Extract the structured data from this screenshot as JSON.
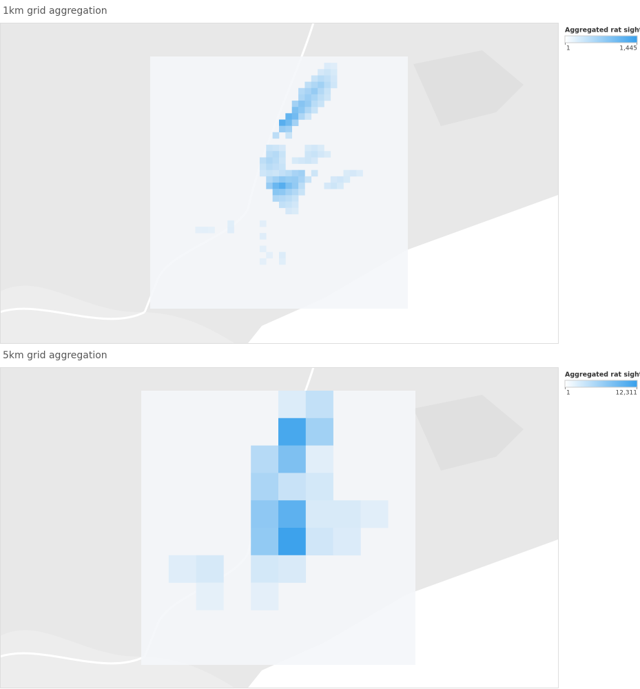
{
  "panels": [
    {
      "title": "1km grid aggregation",
      "legend": {
        "title": "Aggregated rat sightin..",
        "min": 1,
        "max": {
          "value": 1445,
          "label": "1,445"
        }
      },
      "grid": {
        "cols": 40,
        "rows": 40
      },
      "cells": [
        [
          27,
          1,
          150
        ],
        [
          28,
          1,
          120
        ],
        [
          26,
          2,
          200
        ],
        [
          27,
          2,
          260
        ],
        [
          28,
          2,
          180
        ],
        [
          25,
          3,
          300
        ],
        [
          26,
          3,
          420
        ],
        [
          27,
          3,
          350
        ],
        [
          28,
          3,
          220
        ],
        [
          24,
          4,
          380
        ],
        [
          25,
          4,
          500
        ],
        [
          26,
          4,
          610
        ],
        [
          27,
          4,
          420
        ],
        [
          28,
          4,
          250
        ],
        [
          23,
          5,
          450
        ],
        [
          24,
          5,
          560
        ],
        [
          25,
          5,
          700
        ],
        [
          26,
          5,
          480
        ],
        [
          27,
          5,
          300
        ],
        [
          23,
          6,
          520
        ],
        [
          24,
          6,
          650
        ],
        [
          25,
          6,
          540
        ],
        [
          26,
          6,
          380
        ],
        [
          27,
          6,
          260
        ],
        [
          22,
          7,
          600
        ],
        [
          23,
          7,
          820
        ],
        [
          24,
          7,
          700
        ],
        [
          25,
          7,
          420
        ],
        [
          26,
          7,
          300
        ],
        [
          22,
          8,
          900
        ],
        [
          23,
          8,
          760
        ],
        [
          24,
          8,
          500
        ],
        [
          25,
          8,
          300
        ],
        [
          21,
          9,
          1100
        ],
        [
          22,
          9,
          980
        ],
        [
          23,
          9,
          520
        ],
        [
          24,
          9,
          260
        ],
        [
          20,
          10,
          1200
        ],
        [
          21,
          10,
          1000
        ],
        [
          22,
          10,
          600
        ],
        [
          20,
          11,
          700
        ],
        [
          21,
          11,
          620
        ],
        [
          19,
          12,
          400
        ],
        [
          21,
          12,
          300
        ],
        [
          18,
          14,
          300
        ],
        [
          19,
          14,
          260
        ],
        [
          20,
          14,
          200
        ],
        [
          24,
          14,
          180
        ],
        [
          25,
          14,
          220
        ],
        [
          26,
          14,
          160
        ],
        [
          18,
          15,
          400
        ],
        [
          19,
          15,
          450
        ],
        [
          20,
          15,
          300
        ],
        [
          24,
          15,
          260
        ],
        [
          25,
          15,
          300
        ],
        [
          26,
          15,
          220
        ],
        [
          27,
          15,
          160
        ],
        [
          17,
          16,
          380
        ],
        [
          18,
          16,
          500
        ],
        [
          19,
          16,
          420
        ],
        [
          20,
          16,
          260
        ],
        [
          22,
          16,
          180
        ],
        [
          23,
          16,
          220
        ],
        [
          24,
          16,
          260
        ],
        [
          25,
          16,
          200
        ],
        [
          17,
          17,
          300
        ],
        [
          18,
          17,
          420
        ],
        [
          19,
          17,
          360
        ],
        [
          20,
          17,
          300
        ],
        [
          17,
          18,
          250
        ],
        [
          18,
          18,
          300
        ],
        [
          19,
          18,
          260
        ],
        [
          20,
          18,
          340
        ],
        [
          21,
          18,
          420
        ],
        [
          22,
          18,
          560
        ],
        [
          23,
          18,
          620
        ],
        [
          25,
          18,
          260
        ],
        [
          30,
          18,
          160
        ],
        [
          31,
          18,
          200
        ],
        [
          32,
          18,
          140
        ],
        [
          18,
          19,
          480
        ],
        [
          19,
          19,
          620
        ],
        [
          20,
          19,
          760
        ],
        [
          21,
          19,
          680
        ],
        [
          22,
          19,
          700
        ],
        [
          23,
          19,
          560
        ],
        [
          24,
          19,
          300
        ],
        [
          28,
          19,
          200
        ],
        [
          29,
          19,
          240
        ],
        [
          30,
          19,
          180
        ],
        [
          18,
          20,
          700
        ],
        [
          19,
          20,
          1050
        ],
        [
          20,
          20,
          1200
        ],
        [
          21,
          20,
          900
        ],
        [
          22,
          20,
          720
        ],
        [
          23,
          20,
          400
        ],
        [
          27,
          20,
          200
        ],
        [
          28,
          20,
          260
        ],
        [
          29,
          20,
          180
        ],
        [
          19,
          21,
          800
        ],
        [
          20,
          21,
          760
        ],
        [
          21,
          21,
          600
        ],
        [
          22,
          21,
          480
        ],
        [
          23,
          21,
          300
        ],
        [
          19,
          22,
          500
        ],
        [
          20,
          22,
          460
        ],
        [
          21,
          22,
          400
        ],
        [
          22,
          22,
          300
        ],
        [
          20,
          23,
          350
        ],
        [
          21,
          23,
          300
        ],
        [
          22,
          23,
          220
        ],
        [
          21,
          24,
          200
        ],
        [
          22,
          24,
          160
        ],
        [
          7,
          27,
          80
        ],
        [
          8,
          27,
          90
        ],
        [
          9,
          27,
          70
        ],
        [
          12,
          26,
          110
        ],
        [
          12,
          27,
          120
        ],
        [
          17,
          26,
          100
        ],
        [
          17,
          28,
          120
        ],
        [
          17,
          30,
          90
        ],
        [
          18,
          31,
          80
        ],
        [
          20,
          32,
          110
        ],
        [
          20,
          31,
          140
        ],
        [
          17,
          32,
          80
        ]
      ]
    },
    {
      "title": "5km grid aggregation",
      "legend": {
        "title": "Aggregated rat sightin..",
        "min": 1,
        "max": {
          "value": 12311,
          "label": "12,311"
        }
      },
      "grid": {
        "cols": 10,
        "rows": 10
      },
      "cells": [
        [
          5,
          0,
          1200
        ],
        [
          6,
          0,
          3000
        ],
        [
          5,
          1,
          11200
        ],
        [
          6,
          1,
          5200
        ],
        [
          4,
          2,
          3800
        ],
        [
          5,
          2,
          7600
        ],
        [
          6,
          2,
          900
        ],
        [
          4,
          3,
          4500
        ],
        [
          5,
          3,
          2600
        ],
        [
          6,
          3,
          1800
        ],
        [
          4,
          4,
          6400
        ],
        [
          5,
          4,
          9800
        ],
        [
          6,
          4,
          1500
        ],
        [
          7,
          4,
          1500
        ],
        [
          8,
          4,
          900
        ],
        [
          4,
          5,
          6200
        ],
        [
          5,
          5,
          12000
        ],
        [
          6,
          5,
          2000
        ],
        [
          7,
          5,
          1300
        ],
        [
          1,
          6,
          1000
        ],
        [
          2,
          6,
          1600
        ],
        [
          4,
          6,
          1800
        ],
        [
          5,
          6,
          1400
        ],
        [
          2,
          7,
          600
        ],
        [
          4,
          7,
          700
        ]
      ]
    }
  ]
}
